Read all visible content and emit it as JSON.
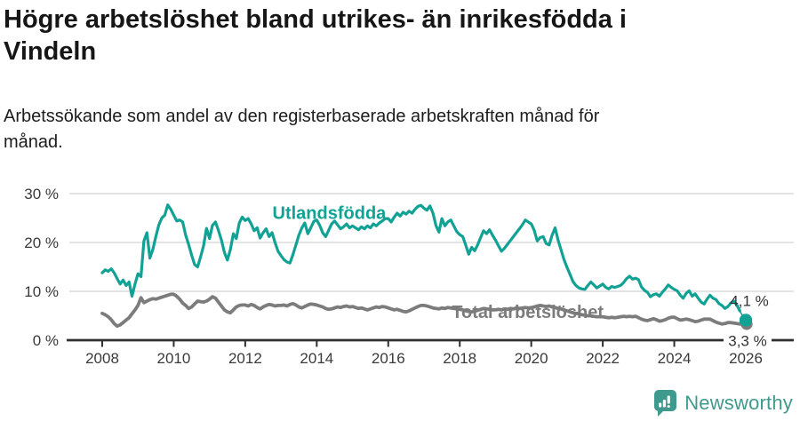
{
  "header": {
    "title": "Högre arbetslöshet bland utrikes- än inrikesfödda i Vindeln",
    "title_lines": [
      "Högre arbetslöshet bland utrikes- än inrikesfödda i",
      "Vindeln"
    ],
    "subtitle": "Arbetssökande som andel av den registerbaserade arbetskraften månad för månad.",
    "subtitle_lines": [
      "Arbetssökande som andel av den registerbaserade arbetskraften månad för",
      "månad."
    ]
  },
  "chart_data": {
    "type": "line",
    "x_start": 2008,
    "x_end": 2026,
    "points_per_year": 12,
    "x_ticks": [
      2008,
      2010,
      2012,
      2014,
      2016,
      2018,
      2020,
      2022,
      2024,
      2026
    ],
    "y_ticks": [
      {
        "value": 0,
        "label": "0 %"
      },
      {
        "value": 10,
        "label": "10 %"
      },
      {
        "value": 20,
        "label": "20 %"
      },
      {
        "value": 30,
        "label": "30 %"
      }
    ],
    "ylim": [
      0,
      30
    ],
    "grid": true,
    "colors": {
      "teal": "#11a295",
      "gray": "#7c7c7c",
      "gridline": "#dbdbdb",
      "axis": "#2f2f2f",
      "tick_label": "#3a3a3a",
      "value_label": "#333333"
    },
    "series": [
      {
        "name": "Utlandsfödda",
        "color": "#11a295",
        "stroke_width": 3.2,
        "thin_tail_points": 2,
        "end_dot": true,
        "values": [
          13.8,
          14.4,
          14.1,
          14.6,
          13.8,
          12.6,
          11.5,
          12.3,
          11.2,
          11.9,
          9.0,
          11.5,
          13.6,
          13.0,
          20.3,
          22.0,
          16.8,
          18.6,
          21.2,
          23.6,
          25.0,
          25.6,
          27.7,
          26.8,
          25.6,
          24.4,
          24.6,
          24.2,
          21.5,
          19.6,
          17.4,
          15.5,
          15.0,
          17.0,
          19.3,
          22.9,
          20.8,
          23.5,
          24.2,
          22.5,
          20.5,
          18.0,
          16.4,
          18.5,
          21.8,
          20.8,
          24.0,
          25.2,
          24.5,
          24.9,
          23.8,
          22.4,
          23.0,
          20.9,
          22.0,
          22.8,
          21.2,
          22.0,
          20.0,
          18.2,
          17.3,
          16.5,
          16.0,
          15.8,
          17.5,
          19.5,
          21.5,
          23.0,
          24.0,
          21.8,
          23.0,
          24.3,
          24.6,
          23.5,
          22.0,
          21.2,
          22.5,
          23.8,
          24.4,
          23.6,
          22.8,
          23.2,
          23.8,
          23.0,
          23.4,
          23.0,
          22.6,
          23.2,
          22.8,
          23.4,
          23.0,
          23.8,
          23.4,
          24.0,
          24.4,
          24.9,
          24.9,
          24.2,
          25.2,
          26.0,
          25.4,
          26.2,
          25.8,
          26.4,
          26.0,
          26.8,
          27.4,
          27.6,
          27.0,
          26.6,
          27.5,
          26.0,
          23.5,
          22.1,
          24.9,
          23.4,
          24.2,
          24.6,
          23.4,
          22.2,
          21.6,
          21.2,
          19.5,
          17.6,
          19.0,
          18.3,
          19.5,
          21.0,
          22.4,
          21.8,
          22.6,
          21.5,
          20.5,
          19.3,
          18.2,
          18.8,
          19.6,
          20.4,
          21.2,
          22.0,
          22.8,
          23.6,
          24.6,
          24.2,
          23.8,
          22.5,
          20.3,
          21.0,
          21.2,
          19.8,
          19.5,
          21.5,
          23.0,
          20.5,
          18.5,
          16.5,
          14.9,
          13.5,
          12.0,
          11.2,
          10.7,
          10.5,
          10.4,
          11.2,
          11.9,
          11.3,
          10.7,
          11.1,
          11.5,
          10.8,
          10.5,
          11.0,
          10.8,
          11.0,
          11.2,
          11.8,
          12.6,
          13.1,
          12.5,
          12.7,
          12.4,
          10.9,
          10.2,
          9.8,
          8.9,
          9.3,
          9.5,
          9.0,
          9.8,
          10.5,
          11.3,
          10.8,
          10.4,
          10.1,
          9.2,
          8.6,
          9.6,
          10.1,
          9.0,
          9.5,
          8.6,
          7.8,
          7.4,
          8.4,
          9.2,
          8.6,
          8.3,
          7.5,
          7.1,
          6.5,
          6.9,
          7.6,
          8.0,
          7.2,
          6.0,
          4.9,
          4.1
        ]
      },
      {
        "name": "Total arbetslöshet",
        "color": "#7c7c7c",
        "stroke_width": 3.8,
        "thin_tail_points": 0,
        "end_dot": true,
        "values": [
          5.5,
          5.2,
          4.8,
          4.2,
          3.4,
          2.9,
          3.1,
          3.6,
          4.1,
          4.6,
          5.4,
          6.2,
          7.1,
          8.7,
          7.7,
          8.0,
          8.3,
          8.5,
          8.4,
          8.6,
          8.8,
          9.0,
          9.2,
          9.4,
          9.4,
          9.0,
          8.4,
          7.6,
          7.1,
          6.5,
          6.8,
          7.4,
          8.0,
          7.9,
          7.8,
          8.0,
          8.4,
          8.9,
          8.6,
          7.8,
          7.0,
          6.2,
          5.8,
          5.6,
          6.2,
          6.8,
          7.1,
          7.2,
          7.2,
          7.0,
          7.3,
          7.1,
          6.7,
          6.4,
          6.8,
          7.1,
          7.3,
          7.2,
          7.0,
          7.1,
          7.1,
          7.2,
          7.0,
          7.3,
          7.5,
          7.2,
          6.8,
          6.6,
          6.9,
          7.2,
          7.4,
          7.3,
          7.2,
          7.0,
          6.8,
          6.5,
          6.3,
          6.4,
          6.6,
          6.8,
          6.7,
          6.9,
          7.0,
          6.8,
          6.9,
          6.7,
          6.5,
          6.6,
          6.4,
          6.2,
          6.4,
          6.6,
          6.8,
          6.7,
          6.9,
          6.8,
          6.6,
          6.4,
          6.2,
          6.3,
          6.1,
          5.9,
          5.8,
          6.0,
          6.3,
          6.6,
          6.9,
          7.1,
          7.1,
          7.0,
          6.8,
          6.6,
          6.5,
          6.4,
          6.6,
          6.5,
          6.7,
          6.6,
          6.5,
          6.4,
          6.3,
          6.2,
          6.0,
          5.9,
          5.8,
          5.9,
          6.1,
          6.3,
          6.5,
          6.4,
          6.3,
          6.2,
          6.2,
          6.3,
          6.2,
          6.4,
          6.3,
          6.5,
          6.4,
          6.6,
          6.5,
          6.6,
          6.7,
          6.6,
          6.7,
          6.8,
          7.0,
          7.1,
          7.0,
          6.9,
          7.0,
          6.8,
          6.7,
          6.5,
          6.4,
          6.2,
          6.0,
          5.8,
          5.6,
          5.5,
          5.4,
          5.2,
          5.1,
          5.0,
          5.0,
          4.9,
          4.8,
          4.8,
          4.8,
          4.7,
          4.6,
          4.7,
          4.6,
          4.7,
          4.8,
          4.9,
          4.8,
          4.9,
          4.8,
          4.9,
          4.6,
          4.3,
          4.1,
          4.0,
          4.2,
          4.4,
          4.2,
          3.9,
          4.0,
          4.2,
          4.5,
          4.7,
          4.7,
          4.4,
          4.1,
          4.2,
          4.3,
          4.2,
          4.0,
          3.8,
          3.9,
          4.1,
          4.3,
          4.3,
          4.3,
          4.0,
          3.7,
          3.5,
          3.3,
          3.4,
          3.6,
          3.6,
          3.5,
          3.4,
          3.3,
          3.3,
          3.3
        ]
      }
    ],
    "series_labels": [
      {
        "text": "Utlandsfödda",
        "x": 2014.35,
        "y": 26.1,
        "color": "#11a295"
      },
      {
        "text": "Total arbetslöshet",
        "x": 2019.9,
        "y": 5.8,
        "color": "#7c7c7c"
      }
    ],
    "end_labels": [
      {
        "text": "4,1 %",
        "x": 2026.1,
        "y": 8.1,
        "bg": false
      },
      {
        "text": "3,3 %",
        "x": 2026.05,
        "y": -0.1,
        "bg": true
      }
    ]
  },
  "footer": {
    "brand": "Newsworthy",
    "brand_color": "#3e9a8c",
    "logo_icon": "bar-chart-speech-bubble-icon"
  }
}
